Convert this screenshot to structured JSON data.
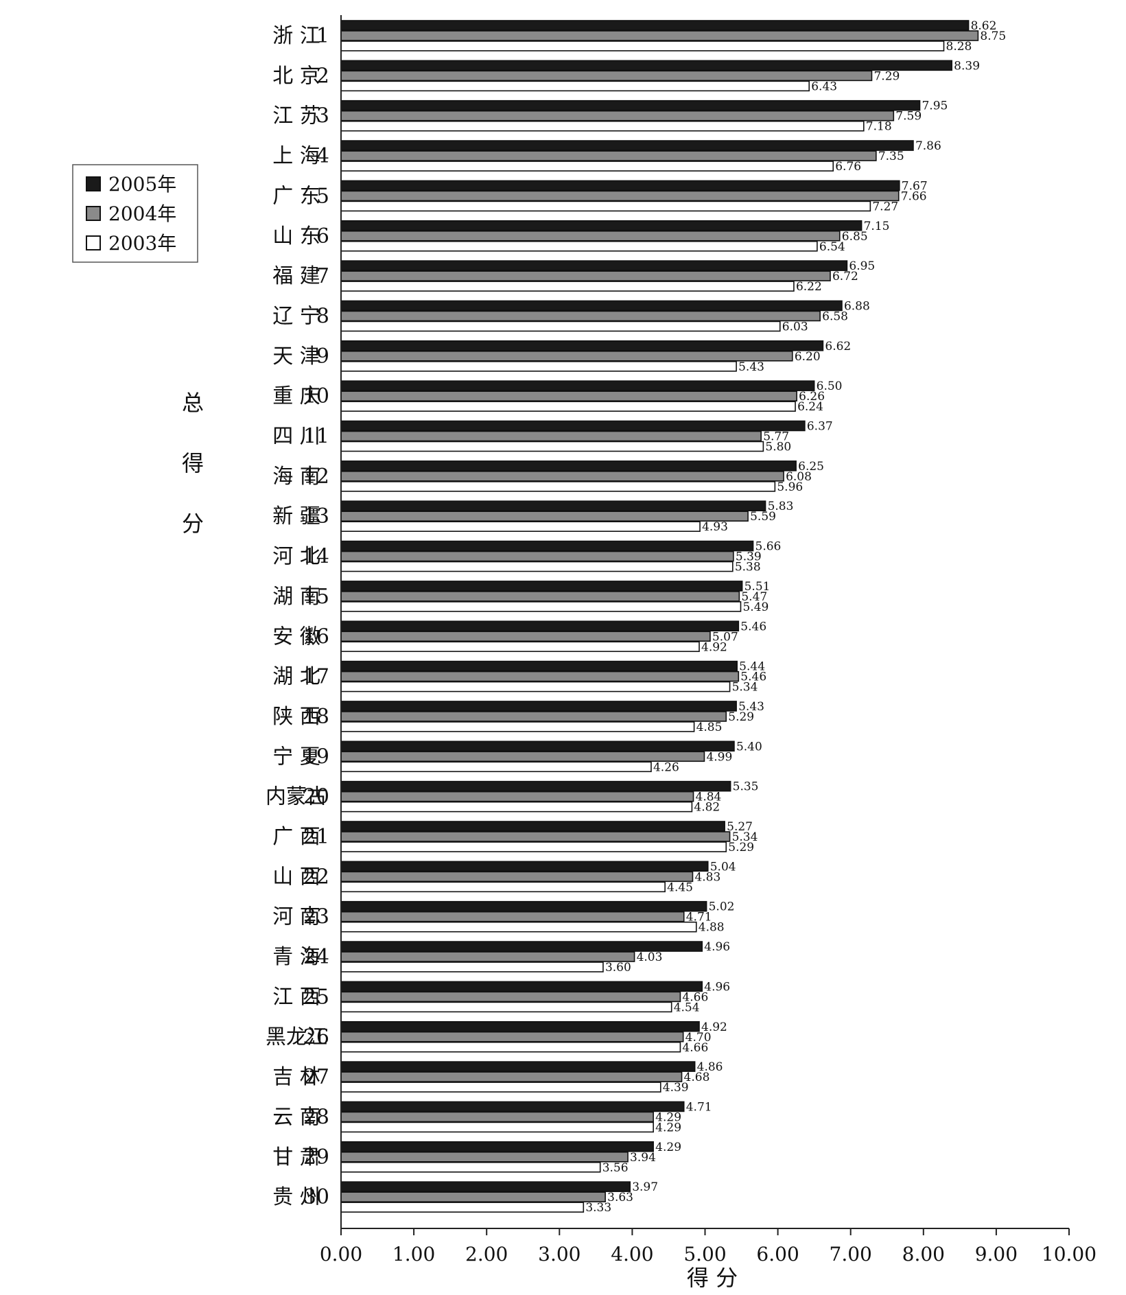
{
  "chart_data": {
    "type": "bar",
    "orientation": "horizontal",
    "xlabel": "得 分",
    "ylabel": "总 得 分",
    "xlim": [
      0,
      10
    ],
    "xticks": [
      "0.00",
      "1.00",
      "2.00",
      "3.00",
      "4.00",
      "5.00",
      "6.00",
      "7.00",
      "8.00",
      "9.00",
      "10.00"
    ],
    "grid": false,
    "legend_position": "left",
    "categories": [
      {
        "name": "浙 江",
        "rank": "1"
      },
      {
        "name": "北 京",
        "rank": "2"
      },
      {
        "name": "江 苏",
        "rank": "3"
      },
      {
        "name": "上 海",
        "rank": "4"
      },
      {
        "name": "广 东",
        "rank": "5"
      },
      {
        "name": "山 东",
        "rank": "6"
      },
      {
        "name": "福 建",
        "rank": "7"
      },
      {
        "name": "辽 宁",
        "rank": "8"
      },
      {
        "name": "天 津",
        "rank": "9"
      },
      {
        "name": "重 庆",
        "rank": "10"
      },
      {
        "name": "四 川",
        "rank": "11"
      },
      {
        "name": "海 南",
        "rank": "12"
      },
      {
        "name": "新 疆",
        "rank": "13"
      },
      {
        "name": "河 北",
        "rank": "14"
      },
      {
        "name": "湖 南",
        "rank": "15"
      },
      {
        "name": "安 徽",
        "rank": "16"
      },
      {
        "name": "湖 北",
        "rank": "17"
      },
      {
        "name": "陕 西",
        "rank": "18"
      },
      {
        "name": "宁 夏",
        "rank": "19"
      },
      {
        "name": "内蒙古",
        "rank": "20"
      },
      {
        "name": "广 西",
        "rank": "21"
      },
      {
        "name": "山 西",
        "rank": "22"
      },
      {
        "name": "河 南",
        "rank": "23"
      },
      {
        "name": "青 海",
        "rank": "24"
      },
      {
        "name": "江 西",
        "rank": "25"
      },
      {
        "name": "黑龙江",
        "rank": "26"
      },
      {
        "name": "吉 林",
        "rank": "27"
      },
      {
        "name": "云 南",
        "rank": "28"
      },
      {
        "name": "甘 肃",
        "rank": "29"
      },
      {
        "name": "贵 州",
        "rank": "30"
      }
    ],
    "series": [
      {
        "name": "2005年",
        "color": "#1a1a1a",
        "values": [
          8.62,
          8.39,
          7.95,
          7.86,
          7.67,
          7.15,
          6.95,
          6.88,
          6.62,
          6.5,
          6.37,
          6.25,
          5.83,
          5.66,
          5.51,
          5.46,
          5.44,
          5.43,
          5.4,
          5.35,
          5.27,
          5.04,
          5.02,
          4.96,
          4.96,
          4.92,
          4.86,
          4.71,
          4.29,
          3.97
        ]
      },
      {
        "name": "2004年",
        "color": "#8a8a8a",
        "values": [
          8.75,
          7.29,
          7.59,
          7.35,
          7.66,
          6.85,
          6.72,
          6.58,
          6.2,
          6.26,
          5.77,
          6.08,
          5.59,
          5.39,
          5.47,
          5.07,
          5.46,
          5.29,
          4.99,
          4.84,
          5.34,
          4.83,
          4.71,
          4.03,
          4.66,
          4.7,
          4.68,
          4.29,
          3.94,
          3.63
        ]
      },
      {
        "name": "2003年",
        "color": "#ffffff",
        "values": [
          8.28,
          6.43,
          7.18,
          6.76,
          7.27,
          6.54,
          6.22,
          6.03,
          5.43,
          6.24,
          5.8,
          5.96,
          4.93,
          5.38,
          5.49,
          4.92,
          5.34,
          4.85,
          4.26,
          4.82,
          5.29,
          4.45,
          4.88,
          3.6,
          4.54,
          4.66,
          4.39,
          4.29,
          3.56,
          3.33
        ]
      }
    ]
  }
}
